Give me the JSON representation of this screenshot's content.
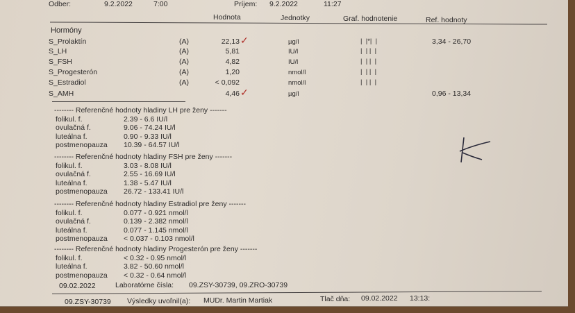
{
  "top": {
    "odber_label": "Odber:",
    "odber_date": "9.2.2022",
    "odber_time": "7:00",
    "prijem_label": "Príjem:",
    "prijem_date": "9.2.2022",
    "prijem_time": "11:27"
  },
  "headers": {
    "value": "Hodnota",
    "unit": "Jednotky",
    "graph": "Graf. hodnotenie",
    "ref": "Ref. hodnoty"
  },
  "group": "Hormóny",
  "results": [
    {
      "name": "S_Prolaktín",
      "flag": "(A)",
      "value": "22,13",
      "unit": "µg/l",
      "graph": "|  |*|  |",
      "ref": "3,34 - 26,70",
      "checked": true
    },
    {
      "name": "S_LH",
      "flag": "(A)",
      "value": "5,81",
      "unit": "IU/l",
      "graph": "|  | |  |",
      "ref": ""
    },
    {
      "name": "S_FSH",
      "flag": "(A)",
      "value": "4,82",
      "unit": "IU/l",
      "graph": "|  | |  |",
      "ref": ""
    },
    {
      "name": "S_Progesterón",
      "flag": "(A)",
      "value": "1,20",
      "unit": "nmol/l",
      "graph": "|  | |  |",
      "ref": ""
    },
    {
      "name": "S_Estradiol",
      "flag": "(A)",
      "value": "< 0,092",
      "unit": "nmol/l",
      "graph": "|  | |  |",
      "ref": ""
    },
    {
      "name": "S_AMH",
      "flag": "",
      "value": "4,46",
      "unit": "µg/l",
      "graph": "",
      "ref": "0,96 - 13,34",
      "checked": true
    }
  ],
  "ref_sections": [
    {
      "title": "-------- Referenčné hodnoty hladiny LH pre ženy -------",
      "rows": [
        [
          "folikul. f.",
          "2.39 - 6.6 IU/l"
        ],
        [
          "ovulačná f.",
          "9.06 - 74.24 IU/l"
        ],
        [
          "luteálna f.",
          "0.90 - 9.33 IU/l"
        ],
        [
          "postmenopauza",
          "10.39 - 64.57 IU/l"
        ]
      ]
    },
    {
      "title": "-------- Referenčné hodnoty hladiny FSH pre ženy -------",
      "rows": [
        [
          "folikul. f.",
          "3.03 - 8.08 IU/l"
        ],
        [
          "ovulačná f.",
          "2.55 - 16.69 IU/l"
        ],
        [
          "luteálna f.",
          "1.38 - 5.47 IU/l"
        ],
        [
          "postmenopauza",
          "26.72 - 133.41 IU/l"
        ]
      ]
    },
    {
      "title": "-------- Referenčné hodnoty hladiny Estradiol pre ženy -------",
      "rows": [
        [
          "folikul. f.",
          "0.077 - 0.921 nmol/l"
        ],
        [
          "ovulačná f.",
          "0.139 - 2.382 nmol/l"
        ],
        [
          "luteálna f.",
          "0.077 - 1.145 nmol/l"
        ],
        [
          "postmenopauza",
          "< 0.037 - 0.103 nmol/l"
        ]
      ]
    },
    {
      "title": "-------- Referenčné hodnoty hladiny Progesterón pre ženy -------",
      "rows": [
        [
          "folikul. f.",
          "< 0.32 - 0.95 nmol/l"
        ],
        [
          "luteálna f.",
          "3.82 - 50.60 nmol/l"
        ],
        [
          "postmenopauza",
          "< 0.32 - 0.64 nmol/l"
        ]
      ]
    }
  ],
  "footer": {
    "date": "09.02.2022",
    "lab_label": "Laboratórne čísla:",
    "lab_numbers": "09.ZSY-30739, 09.ZRO-30739",
    "id": "09.ZSY-30739",
    "released_label": "Výsledky uvoľnil(a):",
    "doctor": "MUDr. Martin Martiak",
    "print_label": "Tlač dňa:",
    "print_date": "09.02.2022",
    "print_time": "13:13:"
  },
  "colors": {
    "paper": "#e0d8cd",
    "ink": "#2c2a2a",
    "check_mark": "#b0302a",
    "background": "#6b4a2e"
  }
}
